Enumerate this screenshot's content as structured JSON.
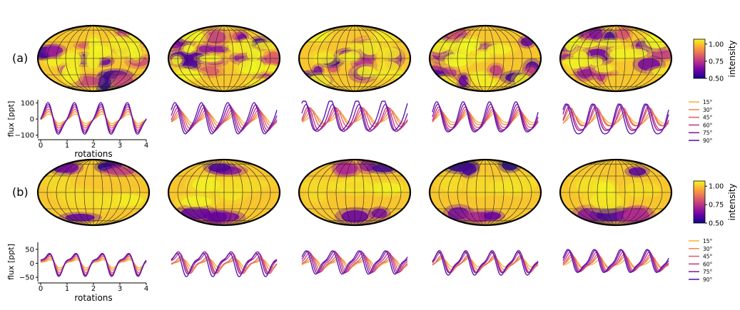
{
  "panels": [
    {
      "label": "(a)",
      "map_style": "spots",
      "seed": 11
    },
    {
      "label": "(b)",
      "map_style": "polar",
      "seed": 29
    }
  ],
  "colorbar": {
    "label": "intensity",
    "ticks": [
      1.0,
      0.75,
      0.5
    ],
    "tick_labels": [
      "1.00",
      "0.75",
      "0.50"
    ],
    "range": [
      0.5,
      1.07
    ],
    "colormap": [
      "#0d0887",
      "#6a00a8",
      "#b12a90",
      "#e16462",
      "#fca636",
      "#f0f921"
    ]
  },
  "legend": {
    "entries": [
      "15°",
      "30°",
      "45°",
      "60°",
      "75°",
      "90°"
    ],
    "colors": [
      "#f9b43d",
      "#f58b4b",
      "#e5636a",
      "#c23f8a",
      "#8f1fa2",
      "#5b18b0"
    ]
  },
  "chart_data": [
    {
      "type": "line",
      "panel": "(a)",
      "xlabel": "rotations",
      "ylabel": "flux [ppt]",
      "x_range": [
        0,
        4
      ],
      "x_ticks": [
        0,
        1,
        2,
        3,
        4
      ],
      "x_tick_labels": [
        "0",
        "1",
        "2",
        "3",
        "4"
      ],
      "y_range": [
        -110,
        110
      ],
      "y_ticks": [
        100,
        0,
        -100
      ],
      "y_tick_labels": [
        "100",
        "0",
        "−100"
      ],
      "series": [
        {
          "name": "15°",
          "amplitude": 30
        },
        {
          "name": "30°",
          "amplitude": 45
        },
        {
          "name": "45°",
          "amplitude": 60
        },
        {
          "name": "60°",
          "amplitude": 75
        },
        {
          "name": "75°",
          "amplitude": 88
        },
        {
          "name": "90°",
          "amplitude": 100
        }
      ]
    },
    {
      "type": "line",
      "panel": "(b)",
      "xlabel": "rotations",
      "ylabel": "flux [ppt]",
      "x_range": [
        0,
        4
      ],
      "x_ticks": [
        0,
        1,
        2,
        3,
        4
      ],
      "x_tick_labels": [
        "0",
        "1",
        "2",
        "3",
        "4"
      ],
      "y_range": [
        -60,
        70
      ],
      "y_ticks": [
        50,
        0,
        -50
      ],
      "y_tick_labels": [
        "50",
        "0",
        "−50"
      ],
      "series": [
        {
          "name": "15°",
          "amplitude": 15
        },
        {
          "name": "30°",
          "amplitude": 22
        },
        {
          "name": "45°",
          "amplitude": 30
        },
        {
          "name": "60°",
          "amplitude": 36
        },
        {
          "name": "75°",
          "amplitude": 40
        },
        {
          "name": "90°",
          "amplitude": 42
        }
      ]
    }
  ]
}
